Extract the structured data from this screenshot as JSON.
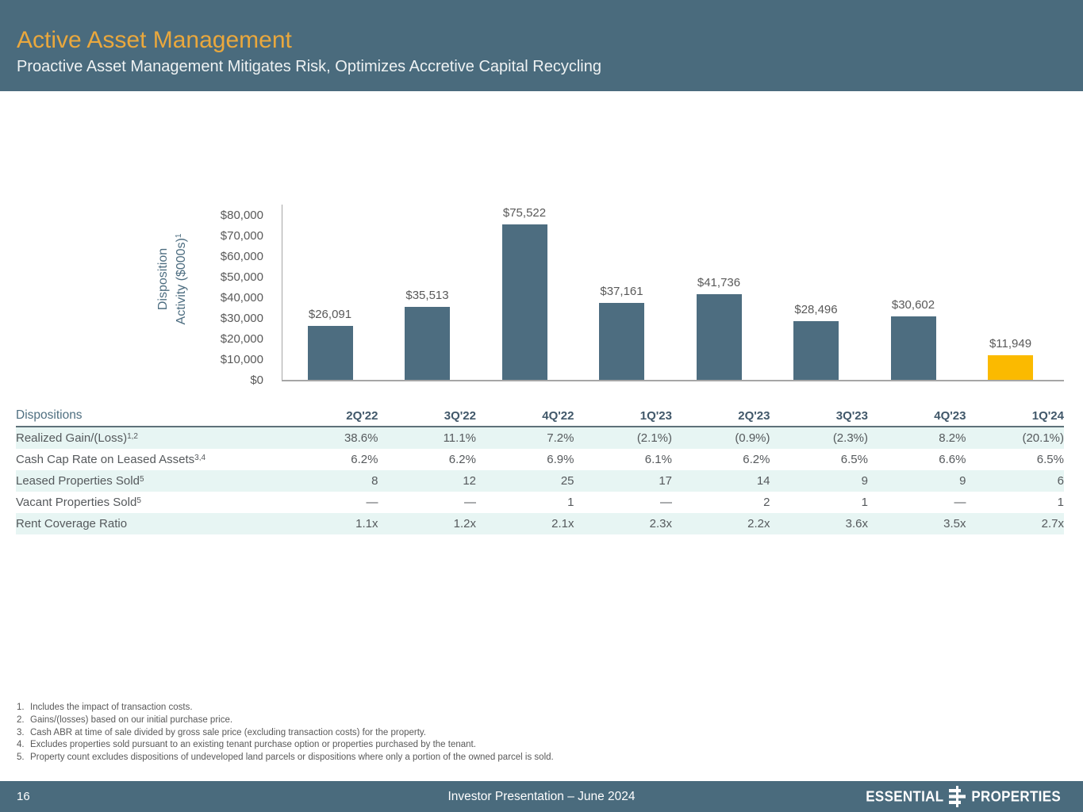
{
  "slide": {
    "title": "Active Asset Management",
    "subtitle": "Proactive Asset Management Mitigates Risk, Optimizes Accretive Capital Recycling"
  },
  "colors": {
    "header_background": "#4a6b7d",
    "title_gold": "#eaa83d",
    "bar_slate": "#4d6d80",
    "bar_highlight_gold": "#fbba00",
    "table_stripe": "#e7f5f3",
    "footer_background": "#4a6b7d"
  },
  "chart_data": {
    "type": "bar",
    "categories": [
      "2Q'22",
      "3Q'22",
      "4Q'22",
      "1Q'23",
      "2Q'23",
      "3Q'23",
      "4Q'23",
      "1Q'24"
    ],
    "values": [
      26091,
      35513,
      75522,
      37161,
      41736,
      28496,
      30602,
      11949
    ],
    "value_labels": [
      "$26,091",
      "$35,513",
      "$75,522",
      "$37,161",
      "$41,736",
      "$28,496",
      "$30,602",
      "$11,949"
    ],
    "highlight_index": 7,
    "bar_color": "#4d6d80",
    "highlight_color": "#fbba00",
    "title": "",
    "ylabel_line1": "Disposition",
    "ylabel_line2": "Activity ($000s)",
    "ylabel_sup": "1",
    "xlabel": "",
    "ylim": [
      0,
      80000
    ],
    "ytick_step": 10000,
    "ytick_labels": [
      "$0",
      "$10,000",
      "$20,000",
      "$30,000",
      "$40,000",
      "$50,000",
      "$60,000",
      "$70,000",
      "$80,000"
    ],
    "grid": false,
    "legend": false
  },
  "table": {
    "header_label": "Dispositions",
    "columns": [
      "2Q'22",
      "3Q'22",
      "4Q'22",
      "1Q'23",
      "2Q'23",
      "3Q'23",
      "4Q'23",
      "1Q'24"
    ],
    "rows": [
      {
        "label": "Realized Gain/(Loss)",
        "sup": "1,2",
        "striped": true,
        "values": [
          "38.6%",
          "11.1%",
          "7.2%",
          "(2.1%)",
          "(0.9%)",
          "(2.3%)",
          "8.2%",
          "(20.1%)"
        ]
      },
      {
        "label": "Cash Cap Rate on Leased Assets",
        "sup": "3,4",
        "striped": false,
        "values": [
          "6.2%",
          "6.2%",
          "6.9%",
          "6.1%",
          "6.2%",
          "6.5%",
          "6.6%",
          "6.5%"
        ]
      },
      {
        "label": "Leased Properties Sold",
        "sup": "5",
        "striped": true,
        "values": [
          "8",
          "12",
          "25",
          "17",
          "14",
          "9",
          "9",
          "6"
        ]
      },
      {
        "label": "Vacant Properties Sold",
        "sup": "5",
        "striped": false,
        "values": [
          "—",
          "—",
          "1",
          "—",
          "2",
          "1",
          "—",
          "1"
        ]
      },
      {
        "label": "Rent Coverage Ratio",
        "sup": "",
        "striped": true,
        "values": [
          "1.1x",
          "1.2x",
          "2.1x",
          "2.3x",
          "2.2x",
          "3.6x",
          "3.5x",
          "2.7x"
        ]
      }
    ]
  },
  "footnotes": [
    {
      "num": "1.",
      "text": "Includes the impact of transaction costs."
    },
    {
      "num": "2.",
      "text": "Gains/(losses) based on our initial purchase price."
    },
    {
      "num": "3.",
      "text": "Cash ABR at time of sale divided by gross sale price (excluding transaction costs) for the property."
    },
    {
      "num": "4.",
      "text": "Excludes properties sold pursuant to an existing tenant purchase option or properties purchased by the tenant."
    },
    {
      "num": "5.",
      "text": "Property count excludes dispositions of undeveloped land parcels or dispositions where only a portion of the owned parcel is sold."
    }
  ],
  "footer": {
    "page_number": "16",
    "center_text": "Investor Presentation – June 2024",
    "logo_left": "ESSENTIAL",
    "logo_right": "PROPERTIES"
  }
}
